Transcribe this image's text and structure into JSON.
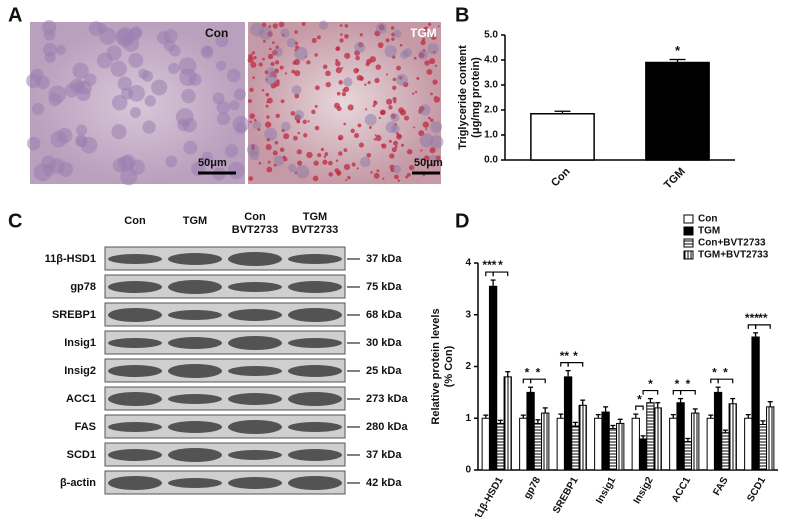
{
  "panel_labels": [
    "A",
    "B",
    "C",
    "D"
  ],
  "micrograph": {
    "left_label": "Con",
    "right_label": "TGM",
    "left_scale": "50μm",
    "right_scale": "50μm"
  },
  "blot": {
    "columns": [
      [
        "Con"
      ],
      [
        "TGM"
      ],
      [
        "Con",
        "BVT2733"
      ],
      [
        "TGM",
        "BVT2733"
      ]
    ],
    "rows": [
      {
        "name": "11β-HSD1",
        "size": "37 kDa"
      },
      {
        "name": "gp78",
        "size": "75 kDa"
      },
      {
        "name": "SREBP1",
        "size": "68 kDa"
      },
      {
        "name": "Insig1",
        "size": "30 kDa"
      },
      {
        "name": "Insig2",
        "size": "25 kDa"
      },
      {
        "name": "ACC1",
        "size": "273 kDa"
      },
      {
        "name": "FAS",
        "size": "280 kDa"
      },
      {
        "name": "SCD1",
        "size": "37 kDa"
      },
      {
        "name": "β-actin",
        "size": "42 kDa"
      }
    ]
  },
  "chart_data": [
    {
      "type": "bar",
      "ylabel": [
        "Triglyceride content",
        "(μg/mg protein)"
      ],
      "categories": [
        "Con",
        "TGM"
      ],
      "values": [
        1.85,
        3.9
      ],
      "errors": [
        0.1,
        0.12
      ],
      "colors": [
        "#ffffff",
        "#000000"
      ],
      "ylim": [
        0,
        5
      ],
      "yticks": [
        {
          "value": 0,
          "label": "0.0"
        },
        {
          "value": 1,
          "label": "1.0"
        },
        {
          "value": 2,
          "label": "2.0"
        },
        {
          "value": 3,
          "label": "3.0"
        },
        {
          "value": 4,
          "label": "4.0"
        },
        {
          "value": 5,
          "label": "5.0"
        }
      ],
      "annotations": [
        {
          "text": "*",
          "category": 1
        }
      ]
    },
    {
      "type": "grouped_bar",
      "ylabel": [
        "Relative protein levels",
        "(% Con)"
      ],
      "categories": [
        "11β-HSD1",
        "gp78",
        "SREBP1",
        "Insig1",
        "Insig2",
        "ACC1",
        "FAS",
        "SCD1"
      ],
      "series": [
        {
          "name": "Con",
          "pattern": "white",
          "values": [
            1.0,
            1.0,
            1.0,
            1.0,
            1.0,
            1.0,
            1.0,
            1.0
          ],
          "errors": [
            0.06,
            0.06,
            0.08,
            0.07,
            0.08,
            0.07,
            0.06,
            0.07
          ]
        },
        {
          "name": "TGM",
          "pattern": "black",
          "values": [
            3.55,
            1.5,
            1.8,
            1.12,
            0.6,
            1.3,
            1.5,
            2.57
          ],
          "errors": [
            0.12,
            0.1,
            0.12,
            0.1,
            0.06,
            0.08,
            0.1,
            0.08
          ]
        },
        {
          "name": "Con+BVT2733",
          "pattern": "horizontal",
          "values": [
            0.9,
            0.9,
            0.85,
            0.8,
            1.3,
            0.55,
            0.72,
            0.88
          ],
          "errors": [
            0.06,
            0.07,
            0.07,
            0.06,
            0.08,
            0.06,
            0.05,
            0.07
          ]
        },
        {
          "name": "TGM+BVT2733",
          "pattern": "vertical",
          "values": [
            1.8,
            1.1,
            1.25,
            0.9,
            1.2,
            1.1,
            1.28,
            1.22
          ],
          "errors": [
            0.1,
            0.1,
            0.1,
            0.08,
            0.1,
            0.08,
            0.1,
            0.1
          ]
        }
      ],
      "ylim": [
        0,
        4
      ],
      "yticks": [
        0,
        1,
        2,
        3,
        4
      ],
      "legend": "top-right",
      "significance": [
        {
          "category": 0,
          "from": 0,
          "to": 1,
          "label": "***"
        },
        {
          "category": 0,
          "from": 1,
          "to": 3,
          "label": "*"
        },
        {
          "category": 1,
          "from": 0,
          "to": 1,
          "label": "*"
        },
        {
          "category": 1,
          "from": 1,
          "to": 3,
          "label": "*"
        },
        {
          "category": 2,
          "from": 0,
          "to": 1,
          "label": "**"
        },
        {
          "category": 2,
          "from": 1,
          "to": 3,
          "label": "*"
        },
        {
          "category": 4,
          "from": 0,
          "to": 1,
          "label": "*"
        },
        {
          "category": 4,
          "from": 1,
          "to": 3,
          "label": "*"
        },
        {
          "category": 5,
          "from": 0,
          "to": 1,
          "label": "*"
        },
        {
          "category": 5,
          "from": 1,
          "to": 3,
          "label": "*"
        },
        {
          "category": 6,
          "from": 0,
          "to": 1,
          "label": "*"
        },
        {
          "category": 6,
          "from": 1,
          "to": 3,
          "label": "*"
        },
        {
          "category": 7,
          "from": 0,
          "to": 1,
          "label": "***"
        },
        {
          "category": 7,
          "from": 1,
          "to": 3,
          "label": "**"
        }
      ]
    }
  ]
}
